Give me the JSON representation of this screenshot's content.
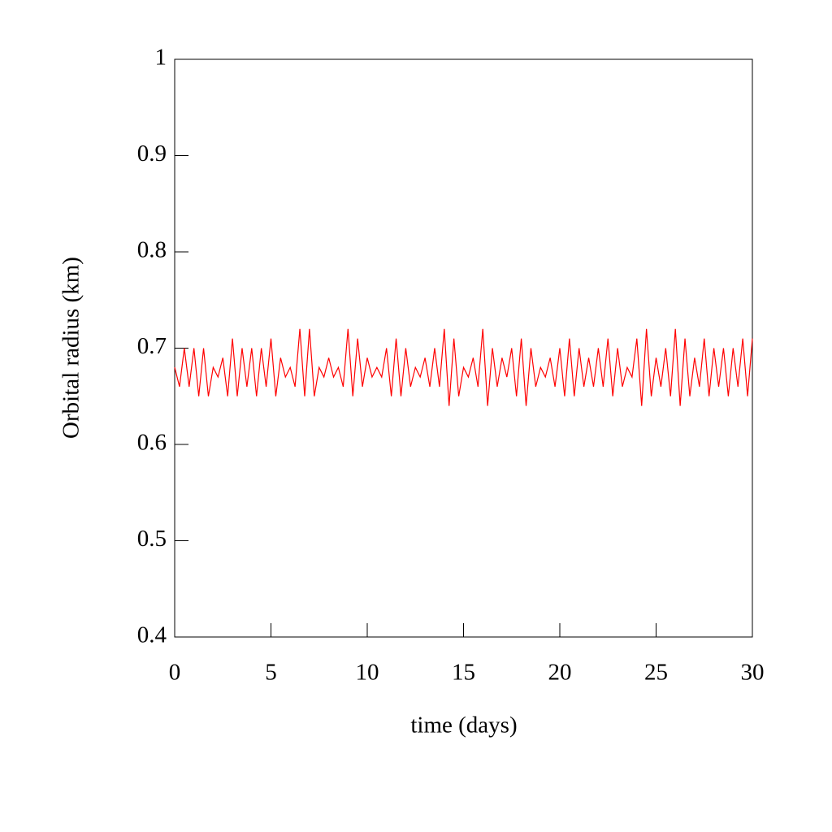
{
  "chart_data": {
    "type": "line",
    "x_label": "time (days)",
    "y_label": "Orbital radius (km)",
    "x": [
      0,
      0.25,
      0.5,
      0.75,
      1,
      1.25,
      1.5,
      1.75,
      2,
      2.25,
      2.5,
      2.75,
      3,
      3.25,
      3.5,
      3.75,
      4,
      4.25,
      4.5,
      4.75,
      5,
      5.25,
      5.5,
      5.75,
      6,
      6.25,
      6.5,
      6.75,
      7,
      7.25,
      7.5,
      7.75,
      8,
      8.25,
      8.5,
      8.75,
      9,
      9.25,
      9.5,
      9.75,
      10,
      10.25,
      10.5,
      10.75,
      11,
      11.25,
      11.5,
      11.75,
      12,
      12.25,
      12.5,
      12.75,
      13,
      13.25,
      13.5,
      13.75,
      14,
      14.25,
      14.5,
      14.75,
      15,
      15.25,
      15.5,
      15.75,
      16,
      16.25,
      16.5,
      16.75,
      17,
      17.25,
      17.5,
      17.75,
      18,
      18.25,
      18.5,
      18.75,
      19,
      19.25,
      19.5,
      19.75,
      20,
      20.25,
      20.5,
      20.75,
      21,
      21.25,
      21.5,
      21.75,
      22,
      22.25,
      22.5,
      22.75,
      23,
      23.25,
      23.5,
      23.75,
      24,
      24.25,
      24.5,
      24.75,
      25,
      25.25,
      25.5,
      25.75,
      26,
      26.25,
      26.5,
      26.75,
      27,
      27.25,
      27.5,
      27.75,
      28,
      28.25,
      28.5,
      28.75,
      29,
      29.25,
      29.5,
      29.75,
      30
    ],
    "values": [
      0.68,
      0.66,
      0.7,
      0.66,
      0.7,
      0.65,
      0.7,
      0.65,
      0.68,
      0.67,
      0.69,
      0.65,
      0.71,
      0.65,
      0.7,
      0.66,
      0.7,
      0.65,
      0.7,
      0.66,
      0.71,
      0.65,
      0.69,
      0.67,
      0.68,
      0.66,
      0.72,
      0.65,
      0.72,
      0.65,
      0.68,
      0.67,
      0.69,
      0.67,
      0.68,
      0.66,
      0.72,
      0.65,
      0.71,
      0.66,
      0.69,
      0.67,
      0.68,
      0.67,
      0.7,
      0.65,
      0.71,
      0.65,
      0.7,
      0.66,
      0.68,
      0.67,
      0.69,
      0.66,
      0.7,
      0.66,
      0.72,
      0.64,
      0.71,
      0.65,
      0.68,
      0.67,
      0.69,
      0.66,
      0.72,
      0.64,
      0.7,
      0.66,
      0.69,
      0.67,
      0.7,
      0.65,
      0.71,
      0.64,
      0.7,
      0.66,
      0.68,
      0.67,
      0.69,
      0.66,
      0.7,
      0.65,
      0.71,
      0.65,
      0.7,
      0.66,
      0.69,
      0.66,
      0.7,
      0.66,
      0.71,
      0.65,
      0.7,
      0.66,
      0.68,
      0.67,
      0.71,
      0.64,
      0.72,
      0.65,
      0.69,
      0.66,
      0.7,
      0.65,
      0.72,
      0.64,
      0.71,
      0.65,
      0.69,
      0.66,
      0.71,
      0.65,
      0.7,
      0.66,
      0.7,
      0.65,
      0.7,
      0.66,
      0.71,
      0.65,
      0.71
    ],
    "color": "#ff0000",
    "xlim": [
      0,
      30
    ],
    "xticks": [
      0,
      5,
      10,
      15,
      20,
      25,
      30
    ],
    "ylim": [
      0.4,
      1
    ],
    "yticks": [
      0.4,
      0.5,
      0.6,
      0.7,
      0.8,
      0.9,
      1
    ]
  }
}
